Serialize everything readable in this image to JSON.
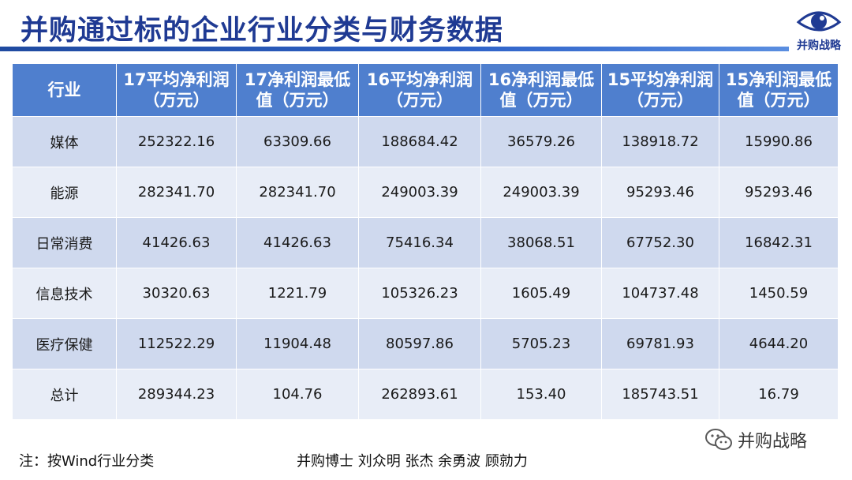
{
  "title": "并购通过标的企业行业分类与财务数据",
  "logo": {
    "icon": "eye-icon",
    "text": "并购战略"
  },
  "table": {
    "headers": [
      "行业",
      "17平均净利润（万元）",
      "17净利润最低值（万元）",
      "16平均净利润（万元）",
      "16净利润最低值（万元）",
      "15平均净利润（万元）",
      "15净利润最低值（万元）"
    ],
    "rows": [
      [
        "媒体",
        "252322.16",
        "63309.66",
        "188684.42",
        "36579.26",
        "138918.72",
        "15990.86"
      ],
      [
        "能源",
        "282341.70",
        "282341.70",
        "249003.39",
        "249003.39",
        "95293.46",
        "95293.46"
      ],
      [
        "日常消费",
        "41426.63",
        "41426.63",
        "75416.34",
        "38068.51",
        "67752.30",
        "16842.31"
      ],
      [
        "信息技术",
        "30320.63",
        "1221.79",
        "105326.23",
        "1605.49",
        "104737.48",
        "1450.59"
      ],
      [
        "医疗保健",
        "112522.29",
        "11904.48",
        "80597.86",
        "5705.23",
        "69781.93",
        "4644.20"
      ],
      [
        "总计",
        "289344.23",
        "104.76",
        "262893.61",
        "153.40",
        "185743.51",
        "16.79"
      ]
    ]
  },
  "note": "注：按Wind行业分类",
  "authors": "并购博士 刘众明 张杰 余勇波 顾勍力",
  "watermark": {
    "icon": "wechat-icon",
    "text": "并购战略"
  },
  "colors": {
    "title": "#1f3a93",
    "header_bg": "#4f7fce",
    "row_odd": "#cfd9ee",
    "row_even": "#e8edf7"
  }
}
